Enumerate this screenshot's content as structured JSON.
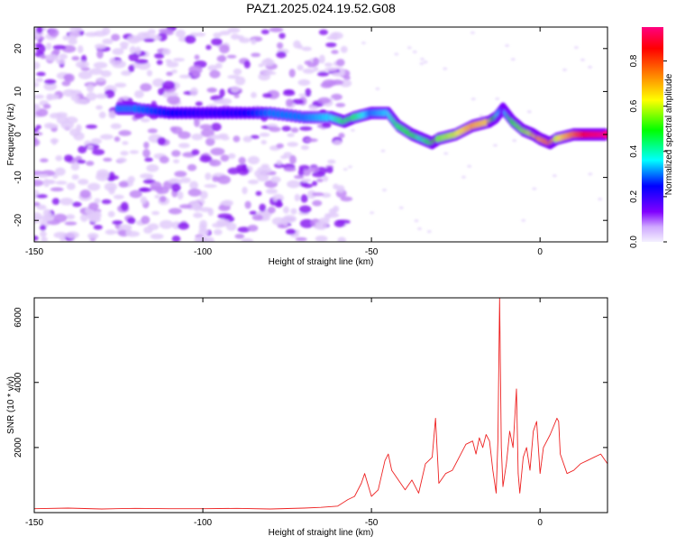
{
  "title": "PAZ1.2025.024.19.52.G08",
  "chart_data": [
    {
      "type": "heatmap",
      "xlabel": "Height of straight line (km)",
      "ylabel": "Frequency (Hz)",
      "xlim": [
        -150,
        20
      ],
      "ylim": [
        -25,
        25
      ],
      "xticks": [
        -150,
        -100,
        -50,
        0
      ],
      "yticks": [
        20,
        10,
        0,
        -10,
        -20
      ],
      "colorbar": {
        "label": "Normalized spectral amplitude",
        "range": [
          0,
          0.95
        ],
        "ticks": [
          0,
          0.2,
          0.4,
          0.6,
          0.8
        ],
        "colors": [
          "#f4f0ff",
          "#cfa8ff",
          "#8000ff",
          "#0000ff",
          "#00ffff",
          "#00ff00",
          "#ffff00",
          "#ff8000",
          "#ff0000",
          "#ff0080"
        ]
      },
      "ridge": {
        "x": [
          -125,
          -120,
          -110,
          -100,
          -90,
          -80,
          -70,
          -62,
          -58,
          -55,
          -50,
          -45,
          -42,
          -38,
          -35,
          -32,
          -30,
          -25,
          -20,
          -15,
          -13,
          -11,
          -10,
          -8,
          -5,
          -2,
          0,
          3,
          5,
          10,
          15,
          20
        ],
        "y": [
          6,
          6,
          5,
          5,
          5,
          5,
          4,
          4,
          3,
          4,
          5,
          5,
          2,
          0,
          -1,
          -2,
          -1,
          0,
          2,
          3,
          4,
          6,
          5,
          3,
          1,
          0,
          -1,
          -2,
          -1,
          0,
          0,
          0
        ],
        "amplitude": [
          0.3,
          0.3,
          0.25,
          0.2,
          0.22,
          0.3,
          0.3,
          0.35,
          0.45,
          0.45,
          0.3,
          0.35,
          0.45,
          0.5,
          0.4,
          0.5,
          0.55,
          0.6,
          0.7,
          0.65,
          0.45,
          0.3,
          0.35,
          0.5,
          0.55,
          0.6,
          0.7,
          0.75,
          0.6,
          0.75,
          0.9,
          0.95
        ]
      },
      "background_noise": {
        "x_range": [
          -150,
          -65
        ],
        "f_range": [
          -25,
          25
        ],
        "amplitude": 0.08
      }
    },
    {
      "type": "line",
      "xlabel": "Height of straight line (km)",
      "ylabel": "SNR (10 * v/v)",
      "xlim": [
        -150,
        20
      ],
      "ylim": [
        0,
        6600
      ],
      "xticks": [
        -150,
        -100,
        -50,
        0
      ],
      "yticks": [
        2000,
        4000,
        6000
      ],
      "color": "#ee2222",
      "series": [
        {
          "x": [
            -150,
            -140,
            -130,
            -120,
            -110,
            -100,
            -90,
            -80,
            -70,
            -65,
            -60,
            -57,
            -55,
            -53,
            -52,
            -50,
            -48,
            -46,
            -45,
            -44,
            -42,
            -40,
            -38,
            -36,
            -34,
            -32,
            -31,
            -30,
            -28,
            -26,
            -24,
            -22,
            -20,
            -19,
            -18,
            -17,
            -16,
            -15,
            -14,
            -13,
            -12.5,
            -12,
            -11.5,
            -11,
            -10,
            -9,
            -8,
            -7,
            -6.5,
            -6,
            -5,
            -4,
            -3,
            -2,
            -1,
            0,
            1,
            3,
            5,
            5.5,
            6,
            8,
            10,
            12,
            14,
            16,
            18,
            20
          ],
          "y": [
            120,
            140,
            110,
            130,
            120,
            120,
            130,
            110,
            140,
            160,
            200,
            400,
            500,
            900,
            1200,
            500,
            700,
            1600,
            1800,
            1300,
            1000,
            700,
            1000,
            600,
            1500,
            1700,
            2900,
            900,
            1200,
            1300,
            1700,
            2100,
            2200,
            1800,
            2300,
            2000,
            2400,
            2200,
            1300,
            600,
            2200,
            6600,
            2000,
            800,
            1500,
            2500,
            2000,
            3800,
            1200,
            600,
            1700,
            2000,
            1300,
            2500,
            2800,
            1200,
            2000,
            2400,
            2900,
            2800,
            1800,
            1200,
            1300,
            1500,
            1600,
            1700,
            1800,
            1500
          ]
        }
      ]
    }
  ]
}
